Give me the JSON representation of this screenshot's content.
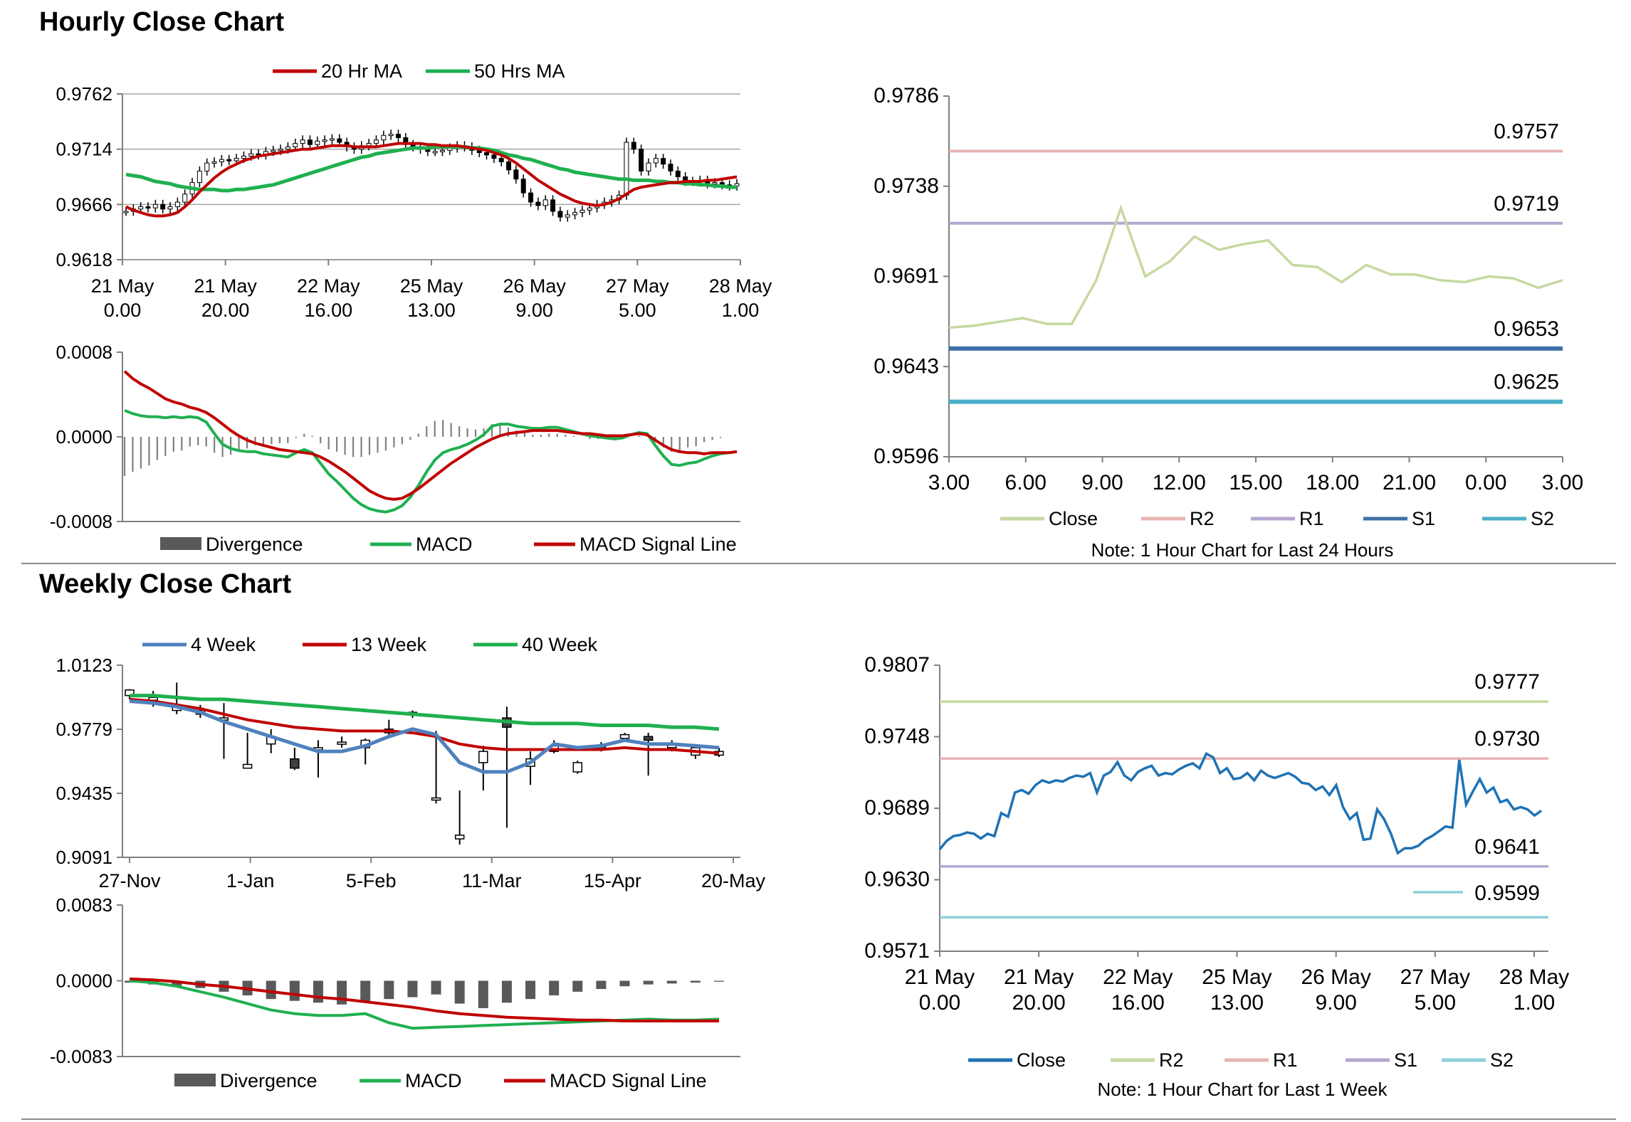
{
  "sections": {
    "hourly_title": "Hourly Close Chart",
    "weekly_title": "Weekly Close Chart"
  },
  "chart_data": [
    {
      "id": "hourly-price",
      "type": "candlestick-line",
      "yticks": [
        "0.9762",
        "0.9714",
        "0.9666",
        "0.9618"
      ],
      "ylim": [
        0.9618,
        0.9762
      ],
      "xticks": [
        [
          "21 May",
          "0.00"
        ],
        [
          "21 May",
          "20.00"
        ],
        [
          "22 May",
          "16.00"
        ],
        [
          "25 May",
          "13.00"
        ],
        [
          "26 May",
          "9.00"
        ],
        [
          "27 May",
          "5.00"
        ],
        [
          "28 May",
          "1.00"
        ]
      ],
      "legend": [
        "20 Hr MA",
        "50 Hrs MA"
      ],
      "colors": {
        "ma20": "#c00000",
        "ma50": "#1fb050"
      },
      "close": [
        0.966,
        0.9662,
        0.9664,
        0.9663,
        0.9666,
        0.9662,
        0.9664,
        0.9668,
        0.9675,
        0.9685,
        0.9695,
        0.9702,
        0.9703,
        0.9705,
        0.9704,
        0.9706,
        0.9708,
        0.971,
        0.9709,
        0.9712,
        0.9713,
        0.9714,
        0.9716,
        0.9719,
        0.9722,
        0.9718,
        0.9721,
        0.9722,
        0.9723,
        0.972,
        0.9716,
        0.9714,
        0.9717,
        0.9719,
        0.9722,
        0.9726,
        0.9727,
        0.9724,
        0.9718,
        0.9716,
        0.9714,
        0.9712,
        0.9712,
        0.9713,
        0.9715,
        0.9717,
        0.9716,
        0.9713,
        0.9711,
        0.9709,
        0.9706,
        0.9703,
        0.9696,
        0.9688,
        0.9676,
        0.9668,
        0.9665,
        0.967,
        0.966,
        0.9655,
        0.9657,
        0.9659,
        0.9661,
        0.9663,
        0.9666,
        0.9668,
        0.967,
        0.9674,
        0.972,
        0.9714,
        0.9695,
        0.9702,
        0.9706,
        0.9701,
        0.9695,
        0.969,
        0.9686,
        0.9686,
        0.9687,
        0.9684,
        0.9685,
        0.9683,
        0.9682,
        0.9684
      ],
      "ma20": [
        0.9664,
        0.9661,
        0.9659,
        0.9657,
        0.9656,
        0.9656,
        0.9657,
        0.9659,
        0.9664,
        0.967,
        0.9677,
        0.9683,
        0.9689,
        0.9694,
        0.9698,
        0.9701,
        0.9704,
        0.9706,
        0.9708,
        0.9709,
        0.971,
        0.9711,
        0.9712,
        0.9713,
        0.9714,
        0.9714,
        0.9715,
        0.9716,
        0.9717,
        0.9717,
        0.9717,
        0.9716,
        0.9716,
        0.9716,
        0.9716,
        0.9717,
        0.9718,
        0.9719,
        0.9719,
        0.9719,
        0.9719,
        0.9718,
        0.9718,
        0.9717,
        0.9717,
        0.9717,
        0.9716,
        0.9715,
        0.9714,
        0.9713,
        0.9711,
        0.9709,
        0.9706,
        0.9702,
        0.9697,
        0.9692,
        0.9687,
        0.9683,
        0.9679,
        0.9675,
        0.9672,
        0.9669,
        0.9667,
        0.9666,
        0.9665,
        0.9666,
        0.9668,
        0.9671,
        0.9675,
        0.9679,
        0.9681,
        0.9682,
        0.9683,
        0.9684,
        0.9685,
        0.9685,
        0.9686,
        0.9686,
        0.9686,
        0.9687,
        0.9687,
        0.9688,
        0.9689,
        0.969
      ],
      "ma50": [
        0.9692,
        0.9691,
        0.969,
        0.9688,
        0.9686,
        0.9685,
        0.9684,
        0.9682,
        0.9681,
        0.968,
        0.9679,
        0.9679,
        0.9679,
        0.9678,
        0.9678,
        0.9679,
        0.9679,
        0.968,
        0.9681,
        0.9682,
        0.9683,
        0.9685,
        0.9687,
        0.9689,
        0.9691,
        0.9693,
        0.9695,
        0.9697,
        0.9699,
        0.9701,
        0.9703,
        0.9705,
        0.9707,
        0.9708,
        0.971,
        0.9711,
        0.9712,
        0.9713,
        0.9714,
        0.9715,
        0.9715,
        0.9715,
        0.9716,
        0.9716,
        0.9716,
        0.9716,
        0.9716,
        0.9715,
        0.9715,
        0.9714,
        0.9713,
        0.9711,
        0.9709,
        0.9708,
        0.9706,
        0.9705,
        0.9703,
        0.9701,
        0.9699,
        0.9697,
        0.9696,
        0.9694,
        0.9693,
        0.9692,
        0.9691,
        0.969,
        0.9689,
        0.9688,
        0.9688,
        0.9687,
        0.9687,
        0.9687,
        0.9686,
        0.9686,
        0.9685,
        0.9685,
        0.9684,
        0.9684,
        0.9683,
        0.9683,
        0.9682,
        0.9682,
        0.9681,
        0.9681
      ]
    },
    {
      "id": "hourly-macd",
      "type": "macd",
      "yticks": [
        "0.0008",
        "0.0000",
        "-0.0008"
      ],
      "ylim": [
        -0.0008,
        0.0008
      ],
      "legend": [
        "Divergence",
        "MACD",
        "MACD Signal Line"
      ],
      "colors": {
        "divergence": "#595959",
        "macd": "#1fb050",
        "signal": "#c00000"
      },
      "macd": [
        0.00025,
        0.00022,
        0.0002,
        0.00019,
        0.00019,
        0.00018,
        0.00019,
        0.00018,
        0.00019,
        0.00018,
        0.00014,
        3e-05,
        -7e-05,
        -0.00011,
        -0.00013,
        -0.00014,
        -0.00014,
        -0.00016,
        -0.00017,
        -0.00018,
        -0.00019,
        -0.00015,
        -0.00012,
        -0.00015,
        -0.00025,
        -0.00035,
        -0.00042,
        -0.0005,
        -0.00058,
        -0.00064,
        -0.00068,
        -0.0007,
        -0.00071,
        -0.00069,
        -0.00065,
        -0.00057,
        -0.00046,
        -0.00033,
        -0.00022,
        -0.00015,
        -0.00012,
        -0.0001,
        -7e-05,
        -3e-05,
        2e-05,
        0.0001,
        0.00012,
        0.00012,
        0.0001,
        9e-05,
        8e-05,
        8e-05,
        9e-05,
        9e-05,
        7e-05,
        5e-05,
        3e-05,
        1e-05,
        0.0,
        -1e-05,
        -2e-05,
        -1e-05,
        2e-05,
        4e-05,
        3e-05,
        -8e-05,
        -0.00018,
        -0.00026,
        -0.00027,
        -0.00025,
        -0.00024,
        -0.00021,
        -0.00018,
        -0.00016,
        -0.00015,
        -0.00014
      ],
      "signal": [
        0.00062,
        0.00055,
        0.0005,
        0.00046,
        0.00041,
        0.00036,
        0.00033,
        0.00031,
        0.00028,
        0.00026,
        0.00023,
        0.00018,
        0.00012,
        6e-05,
        1e-05,
        -3e-05,
        -6e-05,
        -8e-05,
        -0.0001,
        -0.00012,
        -0.00013,
        -0.00014,
        -0.00015,
        -0.00016,
        -0.00019,
        -0.00023,
        -0.00028,
        -0.00033,
        -0.00039,
        -0.00045,
        -0.00051,
        -0.00055,
        -0.00058,
        -0.00059,
        -0.00058,
        -0.00054,
        -0.00049,
        -0.00043,
        -0.00037,
        -0.00031,
        -0.00025,
        -0.0002,
        -0.00015,
        -0.0001,
        -6e-05,
        -2e-05,
        1e-05,
        3e-05,
        4e-05,
        5e-05,
        6e-05,
        6e-05,
        6e-05,
        6e-05,
        5e-05,
        4e-05,
        3e-05,
        3e-05,
        2e-05,
        1e-05,
        1e-05,
        1e-05,
        2e-05,
        3e-05,
        2e-05,
        -3e-05,
        -8e-05,
        -0.00012,
        -0.00014,
        -0.00015,
        -0.00015,
        -0.00016,
        -0.00015,
        -0.00015,
        -0.00015,
        -0.00014
      ]
    },
    {
      "id": "hourly-24h",
      "type": "line",
      "yticks": [
        "0.9786",
        "0.9738",
        "0.9691",
        "0.9643",
        "0.9596"
      ],
      "ylim": [
        0.9596,
        0.9786
      ],
      "xticks": [
        "3.00",
        "6.00",
        "9.00",
        "12.00",
        "15.00",
        "18.00",
        "21.00",
        "0.00",
        "3.00"
      ],
      "close": [
        0.9664,
        0.9665,
        0.9667,
        0.9669,
        0.9666,
        0.9666,
        0.9689,
        0.9727,
        0.9691,
        0.9699,
        0.9712,
        0.9705,
        0.9708,
        0.971,
        0.9697,
        0.9696,
        0.9688,
        0.9697,
        0.9692,
        0.9692,
        0.9689,
        0.9688,
        0.9691,
        0.969,
        0.9685,
        0.9689
      ],
      "levels": [
        {
          "name": "R2",
          "value": 0.9757,
          "label": "0.9757",
          "color": "#e8b4b4"
        },
        {
          "name": "R1",
          "value": 0.9719,
          "label": "0.9719",
          "color": "#b4a7cf"
        },
        {
          "name": "S1",
          "value": 0.9653,
          "label": "0.9653",
          "color": "#3f6fa8"
        },
        {
          "name": "S2",
          "value": 0.9625,
          "label": "0.9625",
          "color": "#4aaec8"
        }
      ],
      "legend": [
        "Close",
        "R2",
        "R1",
        "S1",
        "S2"
      ],
      "close_color": "#c6d9a0",
      "note": "Note: 1 Hour Chart for Last 24 Hours"
    },
    {
      "id": "weekly-price",
      "type": "candlestick-line",
      "yticks": [
        "1.0123",
        "0.9779",
        "0.9435",
        "0.9091"
      ],
      "ylim": [
        0.9091,
        1.0123
      ],
      "xticks": [
        "27-Nov",
        "1-Jan",
        "5-Feb",
        "11-Mar",
        "15-Apr",
        "20-May"
      ],
      "legend": [
        "4 Week",
        "13 Week",
        "40 Week"
      ],
      "colors": {
        "w4": "#4f81bd",
        "w13": "#c00000",
        "w40": "#1fb050"
      },
      "candles": [
        {
          "o": 0.996,
          "c": 0.999,
          "h": 0.9995,
          "l": 0.994
        },
        {
          "o": 0.9935,
          "c": 0.995,
          "h": 0.9985,
          "l": 0.99
        },
        {
          "o": 0.988,
          "c": 0.99,
          "h": 1.003,
          "l": 0.986
        },
        {
          "o": 0.986,
          "c": 0.988,
          "h": 0.991,
          "l": 0.984
        },
        {
          "o": 0.983,
          "c": 0.984,
          "h": 0.992,
          "l": 0.962
        },
        {
          "o": 0.957,
          "c": 0.959,
          "h": 0.976,
          "l": 0.957
        },
        {
          "o": 0.97,
          "c": 0.974,
          "h": 0.978,
          "l": 0.965
        },
        {
          "o": 0.962,
          "c": 0.957,
          "h": 0.968,
          "l": 0.956
        },
        {
          "o": 0.967,
          "c": 0.968,
          "h": 0.972,
          "l": 0.952
        },
        {
          "o": 0.97,
          "c": 0.971,
          "h": 0.974,
          "l": 0.968
        },
        {
          "o": 0.968,
          "c": 0.972,
          "h": 0.973,
          "l": 0.959
        },
        {
          "o": 0.976,
          "c": 0.978,
          "h": 0.983,
          "l": 0.973
        },
        {
          "o": 0.986,
          "c": 0.987,
          "h": 0.988,
          "l": 0.984
        },
        {
          "o": 0.94,
          "c": 0.941,
          "h": 0.977,
          "l": 0.938
        },
        {
          "o": 0.919,
          "c": 0.921,
          "h": 0.945,
          "l": 0.916
        },
        {
          "o": 0.96,
          "c": 0.966,
          "h": 0.969,
          "l": 0.945
        },
        {
          "o": 0.984,
          "c": 0.979,
          "h": 0.99,
          "l": 0.925
        },
        {
          "o": 0.958,
          "c": 0.962,
          "h": 0.966,
          "l": 0.948
        },
        {
          "o": 0.966,
          "c": 0.969,
          "h": 0.972,
          "l": 0.965
        },
        {
          "o": 0.955,
          "c": 0.96,
          "h": 0.961,
          "l": 0.954
        },
        {
          "o": 0.969,
          "c": 0.967,
          "h": 0.971,
          "l": 0.966
        },
        {
          "o": 0.973,
          "c": 0.975,
          "h": 0.976,
          "l": 0.972
        },
        {
          "o": 0.974,
          "c": 0.972,
          "h": 0.976,
          "l": 0.953
        },
        {
          "o": 0.968,
          "c": 0.97,
          "h": 0.972,
          "l": 0.966
        },
        {
          "o": 0.964,
          "c": 0.968,
          "h": 0.97,
          "l": 0.962
        },
        {
          "o": 0.964,
          "c": 0.966,
          "h": 0.968,
          "l": 0.963
        }
      ],
      "w4": [
        0.993,
        0.992,
        0.99,
        0.987,
        0.982,
        0.978,
        0.974,
        0.97,
        0.966,
        0.966,
        0.969,
        0.974,
        0.978,
        0.975,
        0.96,
        0.955,
        0.955,
        0.96,
        0.97,
        0.968,
        0.969,
        0.972,
        0.97,
        0.97,
        0.969,
        0.968
      ],
      "w13": [
        0.994,
        0.993,
        0.991,
        0.989,
        0.986,
        0.983,
        0.981,
        0.979,
        0.978,
        0.977,
        0.977,
        0.977,
        0.976,
        0.974,
        0.97,
        0.968,
        0.967,
        0.967,
        0.967,
        0.967,
        0.967,
        0.968,
        0.967,
        0.967,
        0.966,
        0.965
      ],
      "w40": [
        0.996,
        0.996,
        0.995,
        0.994,
        0.994,
        0.993,
        0.992,
        0.991,
        0.99,
        0.989,
        0.988,
        0.987,
        0.986,
        0.985,
        0.984,
        0.983,
        0.982,
        0.981,
        0.981,
        0.981,
        0.98,
        0.98,
        0.98,
        0.979,
        0.979,
        0.978
      ]
    },
    {
      "id": "weekly-macd",
      "type": "macd",
      "yticks": [
        "0.0083",
        "0.0000",
        "-0.0083"
      ],
      "ylim": [
        -0.0083,
        0.0083
      ],
      "legend": [
        "Divergence",
        "MACD",
        "MACD Signal Line"
      ],
      "colors": {
        "divergence": "#595959",
        "macd": "#1fb050",
        "signal": "#c00000"
      },
      "divergence": [
        -0.0002,
        -0.0004,
        -0.0006,
        -0.0008,
        -0.0012,
        -0.0016,
        -0.002,
        -0.0022,
        -0.0024,
        -0.0026,
        -0.0022,
        -0.002,
        -0.0018,
        -0.0015,
        -0.0025,
        -0.003,
        -0.0024,
        -0.002,
        -0.0016,
        -0.0012,
        -0.0009,
        -0.0006,
        -0.0004,
        -0.0003,
        -0.0002,
        -0.0001
      ],
      "macd": [
        0.0,
        -0.0002,
        -0.0006,
        -0.0012,
        -0.0018,
        -0.0025,
        -0.0032,
        -0.0036,
        -0.0038,
        -0.0038,
        -0.0036,
        -0.0046,
        -0.0052,
        -0.0051,
        -0.005,
        -0.0049,
        -0.0048,
        -0.0047,
        -0.0046,
        -0.0045,
        -0.0044,
        -0.0043,
        -0.0042,
        -0.0043,
        -0.0043,
        -0.0042
      ],
      "signal": [
        0.0002,
        0.0001,
        -0.0001,
        -0.0004,
        -0.0006,
        -0.0009,
        -0.0012,
        -0.0015,
        -0.0018,
        -0.002,
        -0.0023,
        -0.0026,
        -0.0029,
        -0.0033,
        -0.0036,
        -0.0038,
        -0.004,
        -0.0041,
        -0.0042,
        -0.0043,
        -0.0043,
        -0.0044,
        -0.0044,
        -0.0044,
        -0.0044,
        -0.0044
      ]
    },
    {
      "id": "weekly-1w",
      "type": "line",
      "yticks": [
        "0.9807",
        "0.9748",
        "0.9689",
        "0.9630",
        "0.9571"
      ],
      "ylim": [
        0.9571,
        0.9807
      ],
      "xticks": [
        [
          "21 May",
          "0.00"
        ],
        [
          "21 May",
          "20.00"
        ],
        [
          "22 May",
          "16.00"
        ],
        [
          "25 May",
          "13.00"
        ],
        [
          "26 May",
          "9.00"
        ],
        [
          "27 May",
          "5.00"
        ],
        [
          "28 May",
          "1.00"
        ]
      ],
      "close": [
        0.9655,
        0.9662,
        0.9666,
        0.9667,
        0.9669,
        0.9668,
        0.9664,
        0.9668,
        0.9666,
        0.9685,
        0.9682,
        0.9702,
        0.9704,
        0.9701,
        0.9708,
        0.9712,
        0.971,
        0.9712,
        0.9711,
        0.9714,
        0.9716,
        0.9715,
        0.9718,
        0.9702,
        0.9716,
        0.9719,
        0.9727,
        0.9716,
        0.9712,
        0.9719,
        0.9722,
        0.9724,
        0.9716,
        0.9718,
        0.9717,
        0.9721,
        0.9724,
        0.9726,
        0.9722,
        0.9734,
        0.9731,
        0.9718,
        0.9722,
        0.9713,
        0.9714,
        0.9718,
        0.9712,
        0.972,
        0.9716,
        0.9714,
        0.9716,
        0.9718,
        0.9715,
        0.971,
        0.9709,
        0.9704,
        0.9707,
        0.97,
        0.9708,
        0.969,
        0.968,
        0.9685,
        0.9663,
        0.9664,
        0.9688,
        0.968,
        0.9668,
        0.9652,
        0.9656,
        0.9656,
        0.9658,
        0.9663,
        0.9666,
        0.967,
        0.9674,
        0.9673,
        0.9729,
        0.9692,
        0.9703,
        0.9713,
        0.9702,
        0.9706,
        0.9694,
        0.9696,
        0.9688,
        0.969,
        0.9688,
        0.9683,
        0.9687
      ],
      "levels": [
        {
          "name": "R2",
          "value": 0.9777,
          "label": "0.9777",
          "color": "#c6d9a0"
        },
        {
          "name": "R1",
          "value": 0.973,
          "label": "0.9730",
          "color": "#e8b4b4"
        },
        {
          "name": "S1",
          "value": 0.9641,
          "label": "0.9641",
          "color": "#b4a7cf"
        },
        {
          "name": "S2",
          "value": 0.9599,
          "label": "0.9599",
          "color": "#8fcfd9"
        }
      ],
      "legend": [
        "Close",
        "R2",
        "R1",
        "S1",
        "S2"
      ],
      "close_color": "#1f72b4",
      "note": "Note: 1 Hour Chart for Last 1 Week"
    }
  ]
}
